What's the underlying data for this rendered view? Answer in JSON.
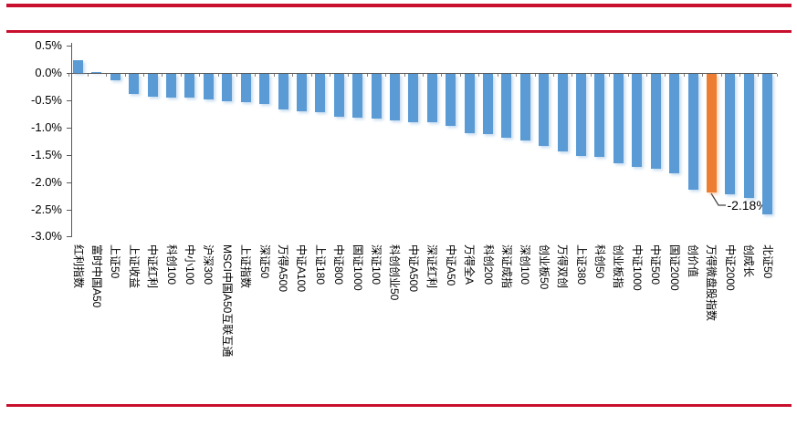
{
  "page": {
    "background": "#FFFFFF",
    "accent_red": "#C8102E"
  },
  "chart_data": {
    "type": "bar",
    "title": "",
    "unit": "%",
    "grid": false,
    "legend": null,
    "x_label_rotation_deg": 90,
    "categories": [
      "红利指数",
      "富时中国A50",
      "上证50",
      "上证收益",
      "中证红利",
      "科创100",
      "中小100",
      "沪深300",
      "MSCI中国A50互联互通",
      "上证指数",
      "深证50",
      "万得A500",
      "中证A100",
      "上证180",
      "中证800",
      "国证1000",
      "深证100",
      "科创创业50",
      "中证A500",
      "深证红利",
      "中证A50",
      "万得全A",
      "科创200",
      "深证成指",
      "深创100",
      "创业板50",
      "万得双创",
      "上证380",
      "科创50",
      "创业板指",
      "中证1000",
      "中证500",
      "国证2000",
      "创价值",
      "万得微盘股指数",
      "中证2000",
      "创成长",
      "北证50"
    ],
    "values": [
      0.23,
      0.02,
      -0.11,
      -0.36,
      -0.42,
      -0.43,
      -0.44,
      -0.46,
      -0.51,
      -0.52,
      -0.56,
      -0.65,
      -0.68,
      -0.71,
      -0.78,
      -0.8,
      -0.82,
      -0.86,
      -0.88,
      -0.89,
      -0.95,
      -1.08,
      -1.11,
      -1.17,
      -1.22,
      -1.32,
      -1.42,
      -1.5,
      -1.53,
      -1.64,
      -1.71,
      -1.74,
      -1.83,
      -2.12,
      -2.18,
      -2.21,
      -2.27,
      -2.58
    ],
    "bar_color": "#5B9BD5",
    "highlight_index": 34,
    "highlight_color": "#ED7D31",
    "annotation": {
      "text": "-2.18%",
      "category": "万得微盘股指数"
    },
    "y_axis": {
      "tick_labels": [
        "0.5%",
        "0.0%",
        "-0.5%",
        "-1.0%",
        "-1.5%",
        "-2.0%",
        "-2.5%",
        "-3.0%"
      ],
      "tick_values": [
        0.5,
        0.0,
        -0.5,
        -1.0,
        -1.5,
        -2.0,
        -2.5,
        -3.0
      ],
      "max": 0.5,
      "min": -3.0
    }
  }
}
